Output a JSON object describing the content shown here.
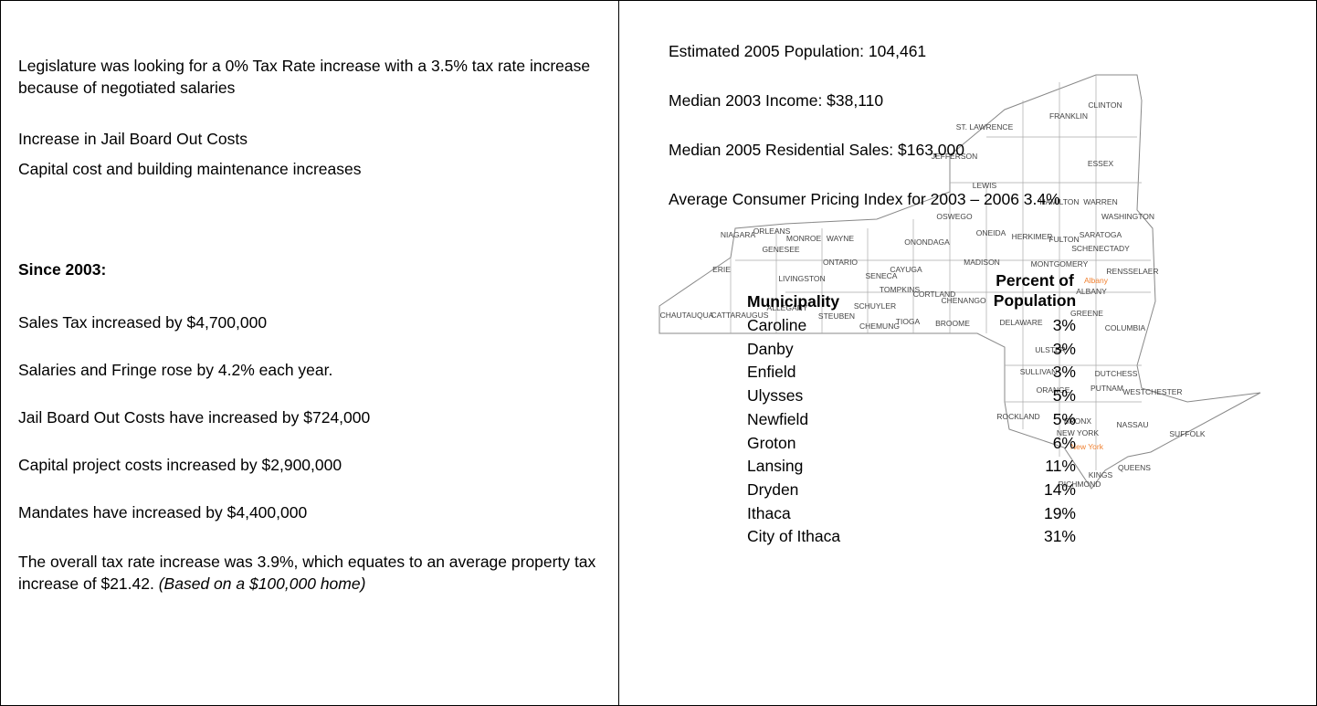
{
  "left": {
    "paragraphs": [
      "Legislature was looking for a 0% Tax Rate increase with a 3.5% tax rate increase because of negotiated salaries",
      "Increase in Jail Board Out Costs",
      "Capital cost and building maintenance increases"
    ],
    "since_heading": "Since 2003:",
    "since_items": [
      "Sales Tax increased by $4,700,000",
      "Salaries and Fringe rose by 4.2% each year.",
      "Jail Board Out Costs have increased by $724,000",
      "Capital project costs increased by  $2,900,000",
      "Mandates have increased by $4,400,000"
    ],
    "summary": "The overall tax rate increase was 3.9%, which equates to an average property tax increase of $21.42.",
    "summary_note": "(Based on a $100,000 home)"
  },
  "right": {
    "stats": [
      "Estimated 2005 Population:  104,461",
      "Median 2003 Income:  $38,110",
      "Median 2005 Residential Sales: $163,000",
      "Average Consumer Pricing Index for 2003 – 2006 3.4%"
    ],
    "table": {
      "header": [
        "Municipality",
        "Percent of Population"
      ],
      "rows": [
        [
          "Caroline",
          "3%"
        ],
        [
          "Danby",
          "3%"
        ],
        [
          "Enfield",
          "3%"
        ],
        [
          "Ulysses",
          "5%"
        ],
        [
          "Newfield",
          "5%"
        ],
        [
          "Groton",
          "6%"
        ],
        [
          "Lansing",
          "11%"
        ],
        [
          "Dryden",
          "14%"
        ],
        [
          "Ithaca",
          "19%"
        ],
        [
          "City of Ithaca",
          "31%"
        ]
      ]
    },
    "map": {
      "labels": [
        "CLINTON",
        "FRANKLIN",
        "ST. LAWRENCE",
        "ESSEX",
        "JEFFERSON",
        "LEWIS",
        "HAMILTON",
        "WARREN",
        "OSWEGO",
        "ONEIDA",
        "HERKIMER",
        "FULTON",
        "SARATOGA",
        "WASHINGTON",
        "NIAGARA",
        "ORLEANS",
        "MONROE",
        "WAYNE",
        "ONONDAGA",
        "MADISON",
        "MONTGOMERY",
        "SCHENECTADY",
        "GENESEE",
        "ERIE",
        "LIVINGSTON",
        "ONTARIO",
        "SENECA",
        "CAYUGA",
        "CORTLAND",
        "CHENANGO",
        "ALBANY",
        "RENSSELAER",
        "CHAUTAUQUA",
        "CATTARAUGUS",
        "ALLEGANY",
        "STEUBEN",
        "SCHUYLER",
        "CHEMUNG",
        "TIOGA",
        "TOMPKINS",
        "BROOME",
        "DELAWARE",
        "GREENE",
        "COLUMBIA",
        "ULSTER",
        "DUTCHESS",
        "SULLIVAN",
        "ORANGE",
        "PUTNAM",
        "WESTCHESTER",
        "ROCKLAND",
        "BRONX",
        "NEW YORK",
        "SUFFOLK",
        "NASSAU",
        "QUEENS",
        "KINGS",
        "RICHMOND"
      ],
      "capitals": [
        "Albany",
        "New York"
      ]
    }
  }
}
